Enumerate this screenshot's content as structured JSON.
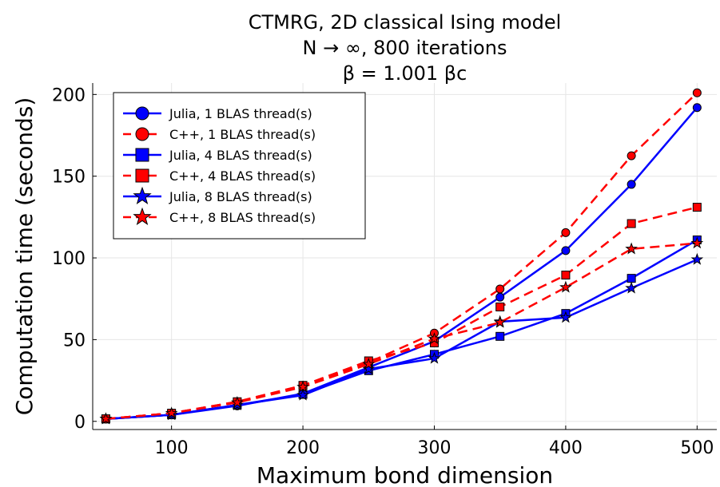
{
  "chart_data": {
    "type": "line",
    "title_lines": [
      "CTMRG, 2D classical Ising model",
      "N → ∞, 800 iterations",
      "β = 1.001 βc"
    ],
    "xlabel": "Maximum bond dimension",
    "ylabel": "Computation time (seconds)",
    "xlim": [
      40,
      515
    ],
    "ylim": [
      -5,
      207
    ],
    "xticks": [
      100,
      200,
      300,
      400,
      500
    ],
    "yticks": [
      0,
      50,
      100,
      150,
      200
    ],
    "grid": true,
    "legend_position": "top-left",
    "x": [
      50,
      100,
      150,
      200,
      250,
      300,
      350,
      400,
      450,
      500
    ],
    "series": [
      {
        "name": "Julia, 1 BLAS thread(s)",
        "color": "#0000ff",
        "dash": "solid",
        "marker": "circle",
        "values": [
          1.5,
          4,
          9.5,
          17,
          33,
          49,
          76,
          104.5,
          145,
          192
        ]
      },
      {
        "name": "C++, 1 BLAS thread(s)",
        "color": "#ff0000",
        "dash": "dashed",
        "marker": "circle",
        "values": [
          1.5,
          5,
          12,
          22,
          36,
          54,
          81,
          115.5,
          162.5,
          201
        ]
      },
      {
        "name": "Julia, 4 BLAS thread(s)",
        "color": "#0000ff",
        "dash": "solid",
        "marker": "square",
        "values": [
          1.5,
          4,
          10,
          16.5,
          31,
          41,
          52,
          66,
          87.5,
          111
        ]
      },
      {
        "name": "C++, 4 BLAS thread(s)",
        "color": "#ff0000",
        "dash": "dashed",
        "marker": "square",
        "values": [
          1.5,
          5,
          12,
          22,
          37,
          48,
          70,
          89.5,
          121,
          131
        ]
      },
      {
        "name": "Julia, 8 BLAS thread(s)",
        "color": "#0000ff",
        "dash": "solid",
        "marker": "star",
        "values": [
          1.5,
          4,
          10,
          16,
          32,
          38.5,
          61,
          63.5,
          81.5,
          99
        ]
      },
      {
        "name": "C++, 8 BLAS thread(s)",
        "color": "#ff0000",
        "dash": "dashed",
        "marker": "star",
        "values": [
          1.5,
          5,
          11.5,
          21,
          35,
          50.5,
          60.5,
          82,
          105.5,
          109
        ]
      }
    ]
  }
}
